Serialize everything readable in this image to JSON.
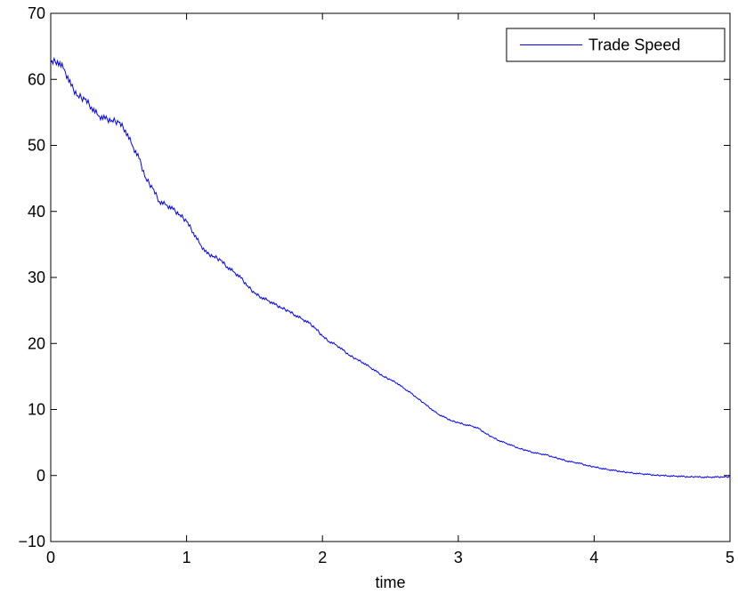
{
  "chart_data": {
    "type": "line",
    "title": "",
    "xlabel": "time",
    "ylabel": "",
    "xlim": [
      0,
      5
    ],
    "ylim": [
      -10,
      70
    ],
    "xticks": [
      0,
      1,
      2,
      3,
      4,
      5
    ],
    "yticks": [
      -10,
      0,
      10,
      20,
      30,
      40,
      50,
      60,
      70
    ],
    "grid": false,
    "legend_position": "top-right",
    "series": [
      {
        "name": "Trade Speed",
        "color": "#0000ff",
        "x": [
          0,
          0.05,
          0.1,
          0.15,
          0.2,
          0.25,
          0.3,
          0.35,
          0.4,
          0.45,
          0.5,
          0.55,
          0.6,
          0.65,
          0.7,
          0.75,
          0.8,
          0.85,
          0.9,
          0.95,
          1.0,
          1.05,
          1.1,
          1.15,
          1.2,
          1.25,
          1.3,
          1.35,
          1.4,
          1.45,
          1.5,
          1.55,
          1.6,
          1.65,
          1.7,
          1.75,
          1.8,
          1.85,
          1.9,
          1.95,
          2.0,
          2.05,
          2.1,
          2.15,
          2.2,
          2.25,
          2.3,
          2.35,
          2.4,
          2.45,
          2.5,
          2.55,
          2.6,
          2.65,
          2.7,
          2.75,
          2.8,
          2.85,
          2.9,
          2.95,
          3.0,
          3.05,
          3.1,
          3.15,
          3.2,
          3.25,
          3.3,
          3.35,
          3.4,
          3.45,
          3.5,
          3.55,
          3.6,
          3.65,
          3.7,
          3.75,
          3.8,
          3.85,
          3.9,
          3.95,
          4.0,
          4.05,
          4.1,
          4.15,
          4.2,
          4.25,
          4.3,
          4.35,
          4.4,
          4.45,
          4.5,
          4.55,
          4.6,
          4.65,
          4.7,
          4.75,
          4.8,
          4.85,
          4.9,
          4.95,
          5.0
        ],
        "y": [
          62.5,
          62.8,
          61.5,
          59.0,
          57.5,
          57.0,
          55.8,
          54.5,
          54.0,
          53.8,
          53.5,
          52.3,
          50.0,
          48.0,
          45.0,
          43.5,
          41.5,
          41.0,
          40.3,
          39.5,
          38.5,
          36.8,
          35.0,
          33.6,
          33.2,
          32.6,
          31.6,
          30.8,
          29.9,
          28.7,
          27.6,
          27.0,
          26.5,
          25.9,
          25.4,
          24.9,
          24.3,
          23.7,
          23.1,
          22.3,
          21.1,
          20.3,
          19.8,
          19.0,
          18.2,
          17.6,
          17.1,
          16.4,
          15.7,
          15.0,
          14.5,
          14.0,
          13.2,
          12.5,
          11.7,
          10.9,
          10.1,
          9.3,
          8.8,
          8.3,
          8.0,
          7.7,
          7.5,
          7.1,
          6.4,
          5.8,
          5.3,
          4.9,
          4.5,
          4.1,
          3.8,
          3.5,
          3.3,
          3.1,
          2.8,
          2.5,
          2.2,
          2.0,
          1.8,
          1.5,
          1.3,
          1.1,
          0.9,
          0.75,
          0.6,
          0.45,
          0.35,
          0.25,
          0.15,
          0.05,
          0.0,
          -0.05,
          -0.1,
          -0.15,
          -0.2,
          -0.2,
          -0.25,
          -0.25,
          -0.25,
          -0.2,
          -0.2
        ]
      }
    ]
  }
}
